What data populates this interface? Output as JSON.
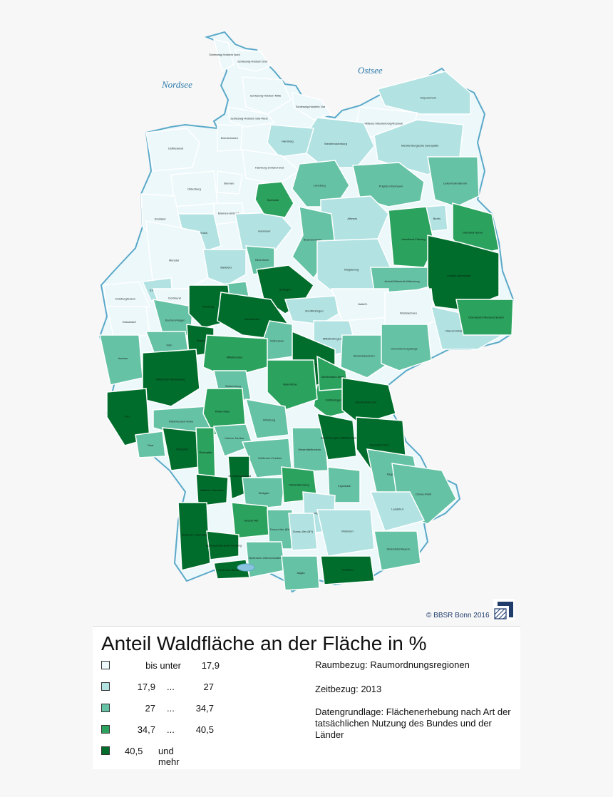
{
  "map": {
    "sea_labels": [
      "Nordsee",
      "Ostsee"
    ],
    "copyright": "© BBSR Bonn 2016",
    "logo_icon": "bbsr-logo-icon",
    "colors": {
      "class1": "#edf8fb",
      "class2": "#b2e2e2",
      "class3": "#66c2a4",
      "class4": "#2ca25f",
      "class5": "#006d2c",
      "coast": "#5aa9c9",
      "border": "#ffffff"
    },
    "regions": [
      {
        "name": "Schleswig-Holstein Süd",
        "cls": 1
      },
      {
        "name": "Schleswig-Holstein Mitte",
        "cls": 1
      },
      {
        "name": "Schleswig-Holstein Ost",
        "cls": 1
      },
      {
        "name": "Schleswig-Holstein Süd-West",
        "cls": 1
      },
      {
        "name": "Schleswig-Holstein Nord",
        "cls": 1
      },
      {
        "name": "Vorpommern",
        "cls": 2
      },
      {
        "name": "Mittleres Mecklenburg/Rostock",
        "cls": 1
      },
      {
        "name": "Westmecklenburg",
        "cls": 2
      },
      {
        "name": "Mecklenburgische Seenplatte",
        "cls": 2
      },
      {
        "name": "Hamburg",
        "cls": 2
      },
      {
        "name": "Bremerhaven",
        "cls": 1
      },
      {
        "name": "Ostfriesland",
        "cls": 1
      },
      {
        "name": "Hamburg-Umland-Süd",
        "cls": 1
      },
      {
        "name": "Bremen",
        "cls": 1
      },
      {
        "name": "Oldenburg",
        "cls": 1
      },
      {
        "name": "Emsland",
        "cls": 1
      },
      {
        "name": "Bremen-Umland",
        "cls": 1
      },
      {
        "name": "Osnabrück",
        "cls": 2
      },
      {
        "name": "Hannover",
        "cls": 2
      },
      {
        "name": "Lüneburg",
        "cls": 3
      },
      {
        "name": "Südheide",
        "cls": 4
      },
      {
        "name": "Prignitz-Oberhavel",
        "cls": 3
      },
      {
        "name": "Uckermark-Barnim",
        "cls": 3
      },
      {
        "name": "Altmark",
        "cls": 2
      },
      {
        "name": "Berlin",
        "cls": 2
      },
      {
        "name": "Oderland-Spree",
        "cls": 4
      },
      {
        "name": "Havelland-Fläming",
        "cls": 4
      },
      {
        "name": "Braunschweig",
        "cls": 3
      },
      {
        "name": "Magdeburg",
        "cls": 2
      },
      {
        "name": "Anhalt-Bitterfeld-Wittenberg",
        "cls": 3
      },
      {
        "name": "Lausitz-Spreewald",
        "cls": 5
      },
      {
        "name": "Münster",
        "cls": 1
      },
      {
        "name": "Bielefeld",
        "cls": 2
      },
      {
        "name": "Paderborn",
        "cls": 3
      },
      {
        "name": "Hildesheim",
        "cls": 3
      },
      {
        "name": "Göttingen",
        "cls": 5
      },
      {
        "name": "Halle/S.",
        "cls": 1
      },
      {
        "name": "Westsachsen",
        "cls": 1
      },
      {
        "name": "Oberes Elbtal/Osterzgebirge",
        "cls": 2
      },
      {
        "name": "Oberlausitz-Niederschlesien",
        "cls": 4
      },
      {
        "name": "Duisburg/Essen",
        "cls": 1
      },
      {
        "name": "Emscher-Lippe",
        "cls": 2
      },
      {
        "name": "Dortmund",
        "cls": 1
      },
      {
        "name": "Düsseldorf",
        "cls": 1
      },
      {
        "name": "Bochum/Hagen",
        "cls": 3
      },
      {
        "name": "Arnsberg",
        "cls": 5
      },
      {
        "name": "Siegen",
        "cls": 5
      },
      {
        "name": "Nordthüringen",
        "cls": 2
      },
      {
        "name": "Mittelthüringen",
        "cls": 2
      },
      {
        "name": "Südwestsachsen",
        "cls": 3
      },
      {
        "name": "Chemnitz-Erzgebirge",
        "cls": 3
      },
      {
        "name": "Köln",
        "cls": 3
      },
      {
        "name": "Bonn",
        "cls": 3
      },
      {
        "name": "Aachen",
        "cls": 3
      },
      {
        "name": "Nordhessen",
        "cls": 5
      },
      {
        "name": "Osthessen",
        "cls": 3
      },
      {
        "name": "Mittelhessen",
        "cls": 4
      },
      {
        "name": "Südthüringen",
        "cls": 5
      },
      {
        "name": "Ostthüringen",
        "cls": 4
      },
      {
        "name": "Mittelrhein-Westerwald",
        "cls": 5
      },
      {
        "name": "Trier",
        "cls": 5
      },
      {
        "name": "Rheinhessen-Nahe",
        "cls": 3
      },
      {
        "name": "Starkenburg",
        "cls": 3
      },
      {
        "name": "Rhein-Main",
        "cls": 4
      },
      {
        "name": "Main-Rhön",
        "cls": 4
      },
      {
        "name": "Oberfranken-West",
        "cls": 4
      },
      {
        "name": "Oberfranken-Ost",
        "cls": 5
      },
      {
        "name": "Oberpfalz-Nord",
        "cls": 5
      },
      {
        "name": "Saar",
        "cls": 3
      },
      {
        "name": "Westpfalz",
        "cls": 5
      },
      {
        "name": "Rheinpfalz",
        "cls": 4
      },
      {
        "name": "Unterer Neckar",
        "cls": 3
      },
      {
        "name": "Würzburg",
        "cls": 3
      },
      {
        "name": "Heilbronn-Franken",
        "cls": 3
      },
      {
        "name": "Westmittelfranken",
        "cls": 3
      },
      {
        "name": "Industrieregion Mittelfranken",
        "cls": 5
      },
      {
        "name": "Regensburg",
        "cls": 3
      },
      {
        "name": "Mittlerer Oberrhein",
        "cls": 5
      },
      {
        "name": "Nordschwarzwald",
        "cls": 5
      },
      {
        "name": "Stuttgart",
        "cls": 3
      },
      {
        "name": "Ostwürttemberg",
        "cls": 4
      },
      {
        "name": "Ingolstadt",
        "cls": 3
      },
      {
        "name": "Donau-Wald",
        "cls": 3
      },
      {
        "name": "Neckar-Alb",
        "cls": 4
      },
      {
        "name": "Augsburg",
        "cls": 2
      },
      {
        "name": "Landshut",
        "cls": 2
      },
      {
        "name": "Südlicher Oberrhein",
        "cls": 5
      },
      {
        "name": "Schwarzwald-Baar-Heuberg",
        "cls": 5
      },
      {
        "name": "Donau-Iller (BW)",
        "cls": 3
      },
      {
        "name": "Donau-Iller (BY)",
        "cls": 2
      },
      {
        "name": "München",
        "cls": 2
      },
      {
        "name": "Südostoberbayern",
        "cls": 3
      },
      {
        "name": "Hochrhein-Bodensee",
        "cls": 5
      },
      {
        "name": "Bodensee-Oberschwaben",
        "cls": 3
      },
      {
        "name": "Allgäu",
        "cls": 3
      },
      {
        "name": "Oberland",
        "cls": 5
      }
    ]
  },
  "legend": {
    "title": "Anteil Waldfläche an der Fläche in %",
    "classes": [
      {
        "lo": "bis unter",
        "sep": "",
        "hi": "17,9",
        "extra": "",
        "color": "#edf8fb"
      },
      {
        "lo": "17,9",
        "sep": "...",
        "hi": "27",
        "extra": "",
        "color": "#b2e2e2"
      },
      {
        "lo": "27",
        "sep": "...",
        "hi": "34,7",
        "extra": "",
        "color": "#66c2a4"
      },
      {
        "lo": "34,7",
        "sep": "...",
        "hi": "40,5",
        "extra": "",
        "color": "#2ca25f"
      },
      {
        "lo": "40,5",
        "sep": "",
        "hi": "",
        "extra": "und mehr",
        "color": "#006d2c"
      }
    ],
    "info": {
      "raumbezug": "Raumbezug: Raumordnungsregionen",
      "zeitbezug": "Zeitbezug: 2013",
      "datengrundlage": "Datengrundlage: Flächenerhebung nach Art der tatsächlichen Nutzung des Bundes und der Länder"
    }
  }
}
